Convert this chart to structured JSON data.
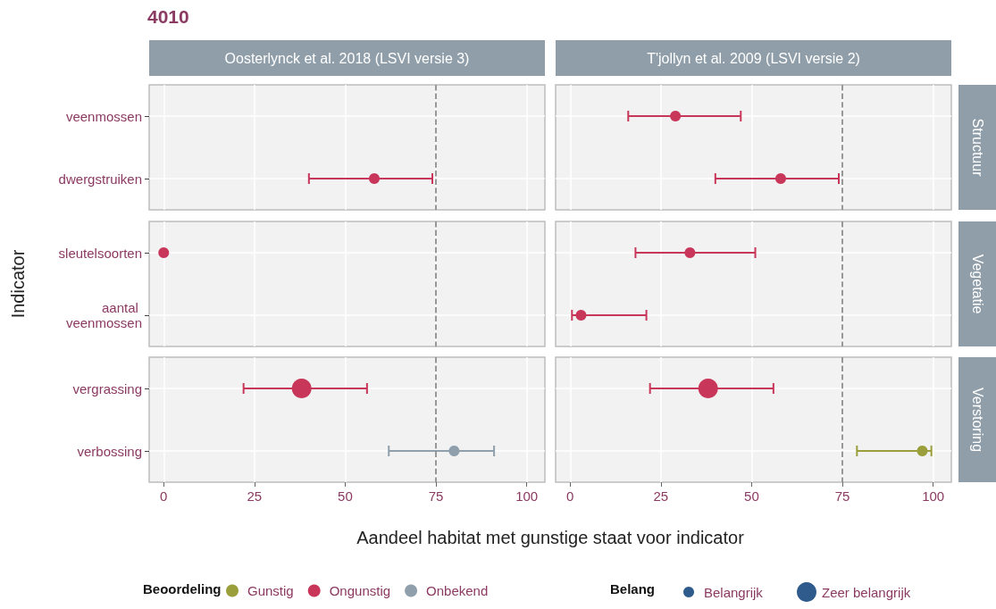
{
  "chart_data": [
    {
      "type": "scatter",
      "orientation": "horizontal",
      "title": "4010",
      "annotations": [
        "Oosterlynck et al. 2018 (LSVI versie 3)"
      ],
      "categories": [
        "veenmossen",
        "dwergstruiken"
      ],
      "tick_labels": "y",
      "xlim": [
        -4,
        105
      ],
      "xticks": [
        0,
        25,
        50,
        75,
        100
      ],
      "grid": true,
      "marker": "circle",
      "ref_lines": [
        {
          "axis": "x",
          "value": 75,
          "color": "#7f7f7f",
          "line_style": "dashed"
        }
      ],
      "series": [
        {
          "color": "#c8375a",
          "values": [
            null,
            58
          ],
          "errors": [
            null,
            [
              40,
              74
            ]
          ]
        }
      ]
    },
    {
      "type": "scatter",
      "orientation": "horizontal",
      "annotations": [
        "T'jollyn et al. 2009 (LSVI versie 2)",
        "Structuur"
      ],
      "categories": [
        "veenmossen",
        "dwergstruiken"
      ],
      "tick_labels": false,
      "xlim": [
        -4,
        105
      ],
      "xticks": [
        0,
        25,
        50,
        75,
        100
      ],
      "grid": true,
      "marker": "circle",
      "ref_lines": [
        {
          "axis": "x",
          "value": 75,
          "color": "#7f7f7f",
          "line_style": "dashed"
        }
      ],
      "series": [
        {
          "color": "#c8375a",
          "values": [
            29,
            58
          ],
          "errors": [
            [
              16,
              47
            ],
            [
              40,
              74
            ]
          ]
        }
      ]
    },
    {
      "type": "scatter",
      "orientation": "horizontal",
      "ylabel": "Indicator",
      "categories": [
        "sleutelsoorten",
        "aantal veenmossen"
      ],
      "tick_labels": "y",
      "xlim": [
        -4,
        105
      ],
      "xticks": [
        0,
        25,
        50,
        75,
        100
      ],
      "grid": true,
      "marker": "circle",
      "ref_lines": [
        {
          "axis": "x",
          "value": 75,
          "color": "#7f7f7f",
          "line_style": "dashed"
        }
      ],
      "series": [
        {
          "color": "#c8375a",
          "values": [
            0,
            null
          ],
          "errors": [
            null,
            null
          ]
        }
      ]
    },
    {
      "type": "scatter",
      "orientation": "horizontal",
      "annotations": [
        "Vegetatie"
      ],
      "categories": [
        "sleutelsoorten",
        "aantal veenmossen"
      ],
      "tick_labels": false,
      "xlim": [
        -4,
        105
      ],
      "xticks": [
        0,
        25,
        50,
        75,
        100
      ],
      "grid": true,
      "marker": "circle",
      "ref_lines": [
        {
          "axis": "x",
          "value": 75,
          "color": "#7f7f7f",
          "line_style": "dashed"
        }
      ],
      "series": [
        {
          "color": "#c8375a",
          "values": [
            33,
            3
          ],
          "errors": [
            [
              18,
              51
            ],
            [
              0.5,
              21
            ]
          ]
        }
      ]
    },
    {
      "type": "scatter",
      "orientation": "horizontal",
      "xlabel": "Aandeel habitat met gunstige staat voor indicator",
      "categories": [
        "vergrassing",
        "verbossing"
      ],
      "xlim": [
        -4,
        105
      ],
      "xticks": [
        0,
        25,
        50,
        75,
        100
      ],
      "grid": true,
      "marker": "circle",
      "ref_lines": [
        {
          "axis": "x",
          "value": 75,
          "color": "#7f7f7f",
          "line_style": "dashed"
        }
      ],
      "series": [
        {
          "color": "#c8375a",
          "values": [
            38,
            null
          ],
          "errors": [
            [
              22,
              56
            ],
            null
          ],
          "sizes": [
            1,
            null
          ]
        },
        {
          "color": "#8f9fac",
          "values": [
            null,
            80
          ],
          "errors": [
            null,
            [
              62,
              91
            ]
          ],
          "sizes": [
            null,
            0.3
          ]
        }
      ]
    },
    {
      "type": "scatter",
      "orientation": "horizontal",
      "annotations": [
        "Verstoring"
      ],
      "categories": [
        "vergrassing",
        "verbossing"
      ],
      "tick_labels": "x",
      "xlim": [
        -4,
        105
      ],
      "xticks": [
        0,
        25,
        50,
        75,
        100
      ],
      "grid": true,
      "marker": "circle",
      "ref_lines": [
        {
          "axis": "x",
          "value": 75,
          "color": "#7f7f7f",
          "line_style": "dashed"
        }
      ],
      "legend": "bottom",
      "legend_title": [
        "Beoordeling",
        "Belang"
      ],
      "size_legend": [
        {
          "value": 0.3,
          "label": "Belangrijk"
        },
        {
          "value": 1,
          "label": "Zeer belangrijk"
        }
      ],
      "series": [
        {
          "name": "Gunstig",
          "color": "#9b9f3b",
          "values": [
            null,
            97
          ],
          "errors": [
            null,
            [
              79,
              99.5
            ]
          ],
          "sizes": [
            null,
            0.3
          ]
        },
        {
          "name": "Ongunstig",
          "color": "#c8375a",
          "values": [
            38,
            null
          ],
          "errors": [
            [
              22,
              56
            ],
            null
          ],
          "sizes": [
            1,
            null
          ]
        },
        {
          "name": "Onbekend",
          "color": "#8f9fac",
          "values": [
            null,
            null
          ]
        }
      ]
    }
  ]
}
